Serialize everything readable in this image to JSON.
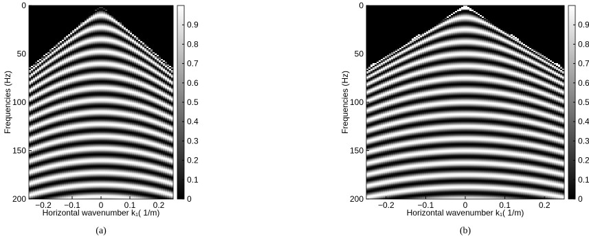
{
  "chart_data": [
    {
      "type": "heatmap",
      "xlabel": "Horizontal wavenumber k₁( 1/m)",
      "ylabel": "Frequencies (Hz)",
      "caption": "(a)",
      "xlim": [
        -0.25,
        0.25
      ],
      "ylim": [
        0,
        200
      ],
      "xticks": [
        {
          "value": -0.2,
          "label": "−0.2"
        },
        {
          "value": -0.1,
          "label": "−0.1"
        },
        0,
        0.1,
        0.2
      ],
      "yticks": [
        0,
        50,
        100,
        150,
        200
      ],
      "clim": [
        0,
        1
      ],
      "cticks": [
        0,
        0.1,
        0.2,
        0.3,
        0.4,
        0.5,
        0.6,
        0.7,
        0.8,
        0.9
      ]
    },
    {
      "type": "heatmap",
      "xlabel": "Horizontal wavenumber k₁( 1/m)",
      "ylabel": "Frequencies (Hz)",
      "caption": "(b)",
      "xlim": [
        -0.25,
        0.25
      ],
      "ylim": [
        0,
        200
      ],
      "xticks": [
        {
          "value": -0.2,
          "label": "−0.2"
        },
        {
          "value": -0.1,
          "label": "−0.1"
        },
        0,
        0.1,
        0.2
      ],
      "yticks": [
        0,
        50,
        100,
        150,
        200
      ],
      "clim": [
        0,
        1
      ],
      "cticks": [
        0,
        0.1,
        0.2,
        0.3,
        0.4,
        0.5,
        0.6,
        0.7,
        0.8,
        0.9
      ]
    }
  ]
}
